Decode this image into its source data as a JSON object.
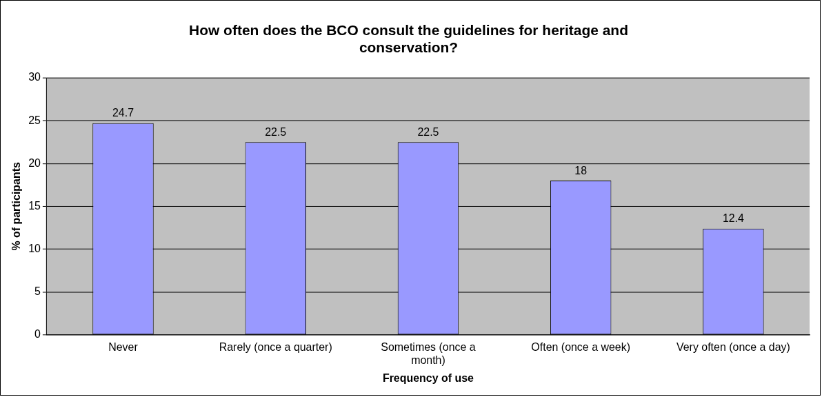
{
  "chart_data": {
    "type": "bar",
    "title": "How often does the BCO consult the guidelines for heritage and conservation?",
    "xlabel": "Frequency of use",
    "ylabel": "% of participants",
    "categories": [
      "Never",
      "Rarely (once a quarter)",
      "Sometimes (once a month)",
      "Often (once a week)",
      "Very often (once a day)"
    ],
    "values": [
      24.7,
      22.5,
      22.5,
      18,
      12.4
    ],
    "color": "#9999ff",
    "ylim": [
      0,
      30
    ],
    "yticks": [
      0,
      5,
      10,
      15,
      20,
      25,
      30
    ],
    "grid": "y",
    "legend": false,
    "data_labels": true
  }
}
